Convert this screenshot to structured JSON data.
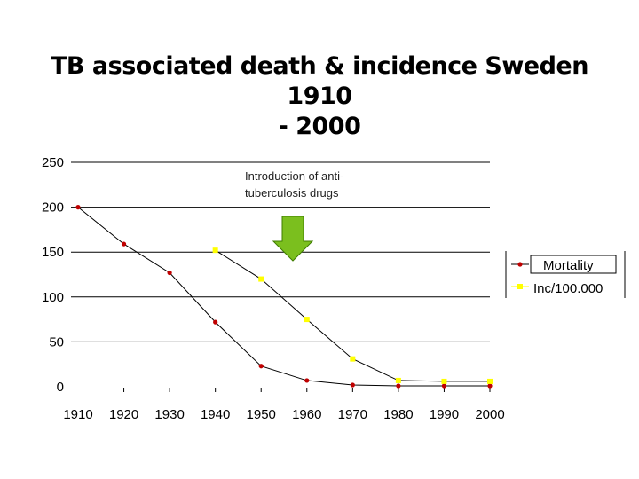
{
  "chart_data": {
    "type": "line",
    "title": "TB associated death & incidence Sweden 1910 - 2000",
    "title_lines": [
      "TB associated death & incidence Sweden 1910",
      "- 2000"
    ],
    "categories": [
      "1910",
      "1920",
      "1930",
      "1940",
      "1950",
      "1960",
      "1970",
      "1980",
      "1990",
      "2000"
    ],
    "x": [
      1910,
      1920,
      1930,
      1940,
      1950,
      1960,
      1970,
      1980,
      1990,
      2000
    ],
    "ylim": [
      0,
      250
    ],
    "yticks": [
      0,
      50,
      100,
      150,
      200,
      250
    ],
    "grid": true,
    "series": [
      {
        "name": "Mortality",
        "color": "#c00000",
        "values": [
          200,
          159,
          127,
          72,
          23,
          7,
          2,
          1,
          1,
          1
        ]
      },
      {
        "name": "Inc/100.000",
        "color": "#ffff00",
        "values": [
          null,
          null,
          null,
          152,
          120,
          75,
          31,
          7,
          6,
          6
        ]
      }
    ],
    "annotation": {
      "lines": [
        "Introduction of anti-",
        "tuberculosis drugs"
      ],
      "arrow_color": "#7bbf1e",
      "arrow_x": 1949
    },
    "legend_position": "right"
  }
}
